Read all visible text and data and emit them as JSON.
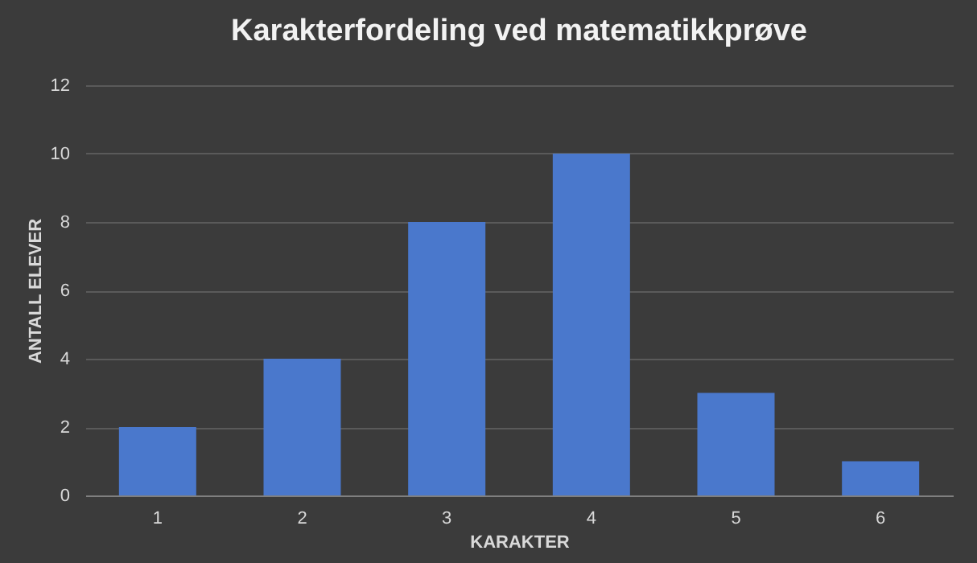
{
  "chart_data": {
    "type": "bar",
    "title": "Karakterfordeling ved matematikkprøve",
    "categories": [
      "1",
      "2",
      "3",
      "4",
      "5",
      "6"
    ],
    "values": [
      2,
      4,
      8,
      10,
      3,
      1
    ],
    "color": "#4a78cc",
    "xlabel": "KARAKTER",
    "ylabel": "ANTALL ELEVER",
    "ylim": [
      0,
      12
    ],
    "yticks": [
      0,
      2,
      4,
      6,
      8,
      10,
      12
    ],
    "grid": "y"
  }
}
